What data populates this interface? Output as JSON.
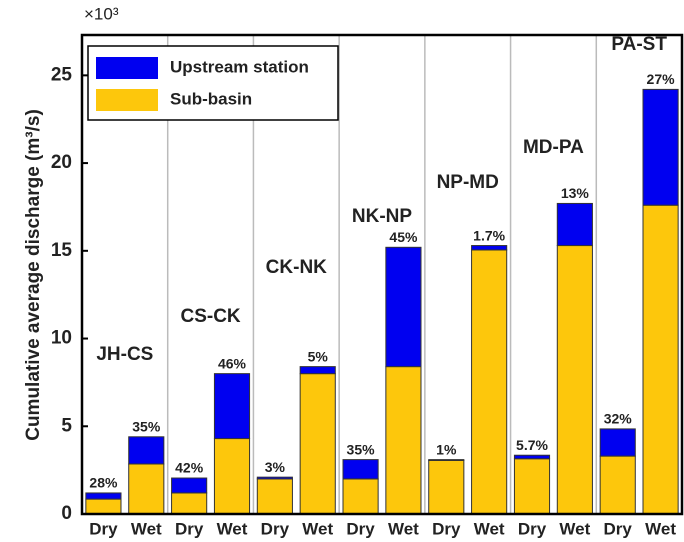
{
  "chart_data": {
    "type": "bar",
    "stacked": true,
    "y_label": "Cumulative average discharge (m³/s)",
    "y_multiplier": "×10³",
    "categories": [
      "Dry",
      "Wet",
      "Dry",
      "Wet",
      "Dry",
      "Wet",
      "Dry",
      "Wet",
      "Dry",
      "Wet",
      "Dry",
      "Wet",
      "Dry",
      "Wet"
    ],
    "group_labels": [
      "JH-CS",
      "CS-CK",
      "CK-NK",
      "NK-NP",
      "NP-MD",
      "MD-PA",
      "PA-ST"
    ],
    "annotations": [
      "28%",
      "35%",
      "42%",
      "46%",
      "3%",
      "5%",
      "35%",
      "45%",
      "1%",
      "1.7%",
      "5.7%",
      "13%",
      "32%",
      "27%"
    ],
    "series": [
      {
        "name": "Sub-basin",
        "color": "#fdc70c",
        "values": [
          0.85,
          2.85,
          1.2,
          4.3,
          2.0,
          8.0,
          2.0,
          8.4,
          3.05,
          15.05,
          3.15,
          15.3,
          3.3,
          17.6
        ]
      },
      {
        "name": "Upstream station",
        "color": "#0000f0",
        "values": [
          0.35,
          1.55,
          0.85,
          3.7,
          0.1,
          0.4,
          1.1,
          6.8,
          0.05,
          0.25,
          0.2,
          2.4,
          1.55,
          6.6
        ]
      }
    ],
    "ylim": [
      0,
      27.3
    ],
    "yticks": [
      0,
      5,
      10,
      15,
      20,
      25
    ],
    "legend": "upper left",
    "separators": true
  }
}
